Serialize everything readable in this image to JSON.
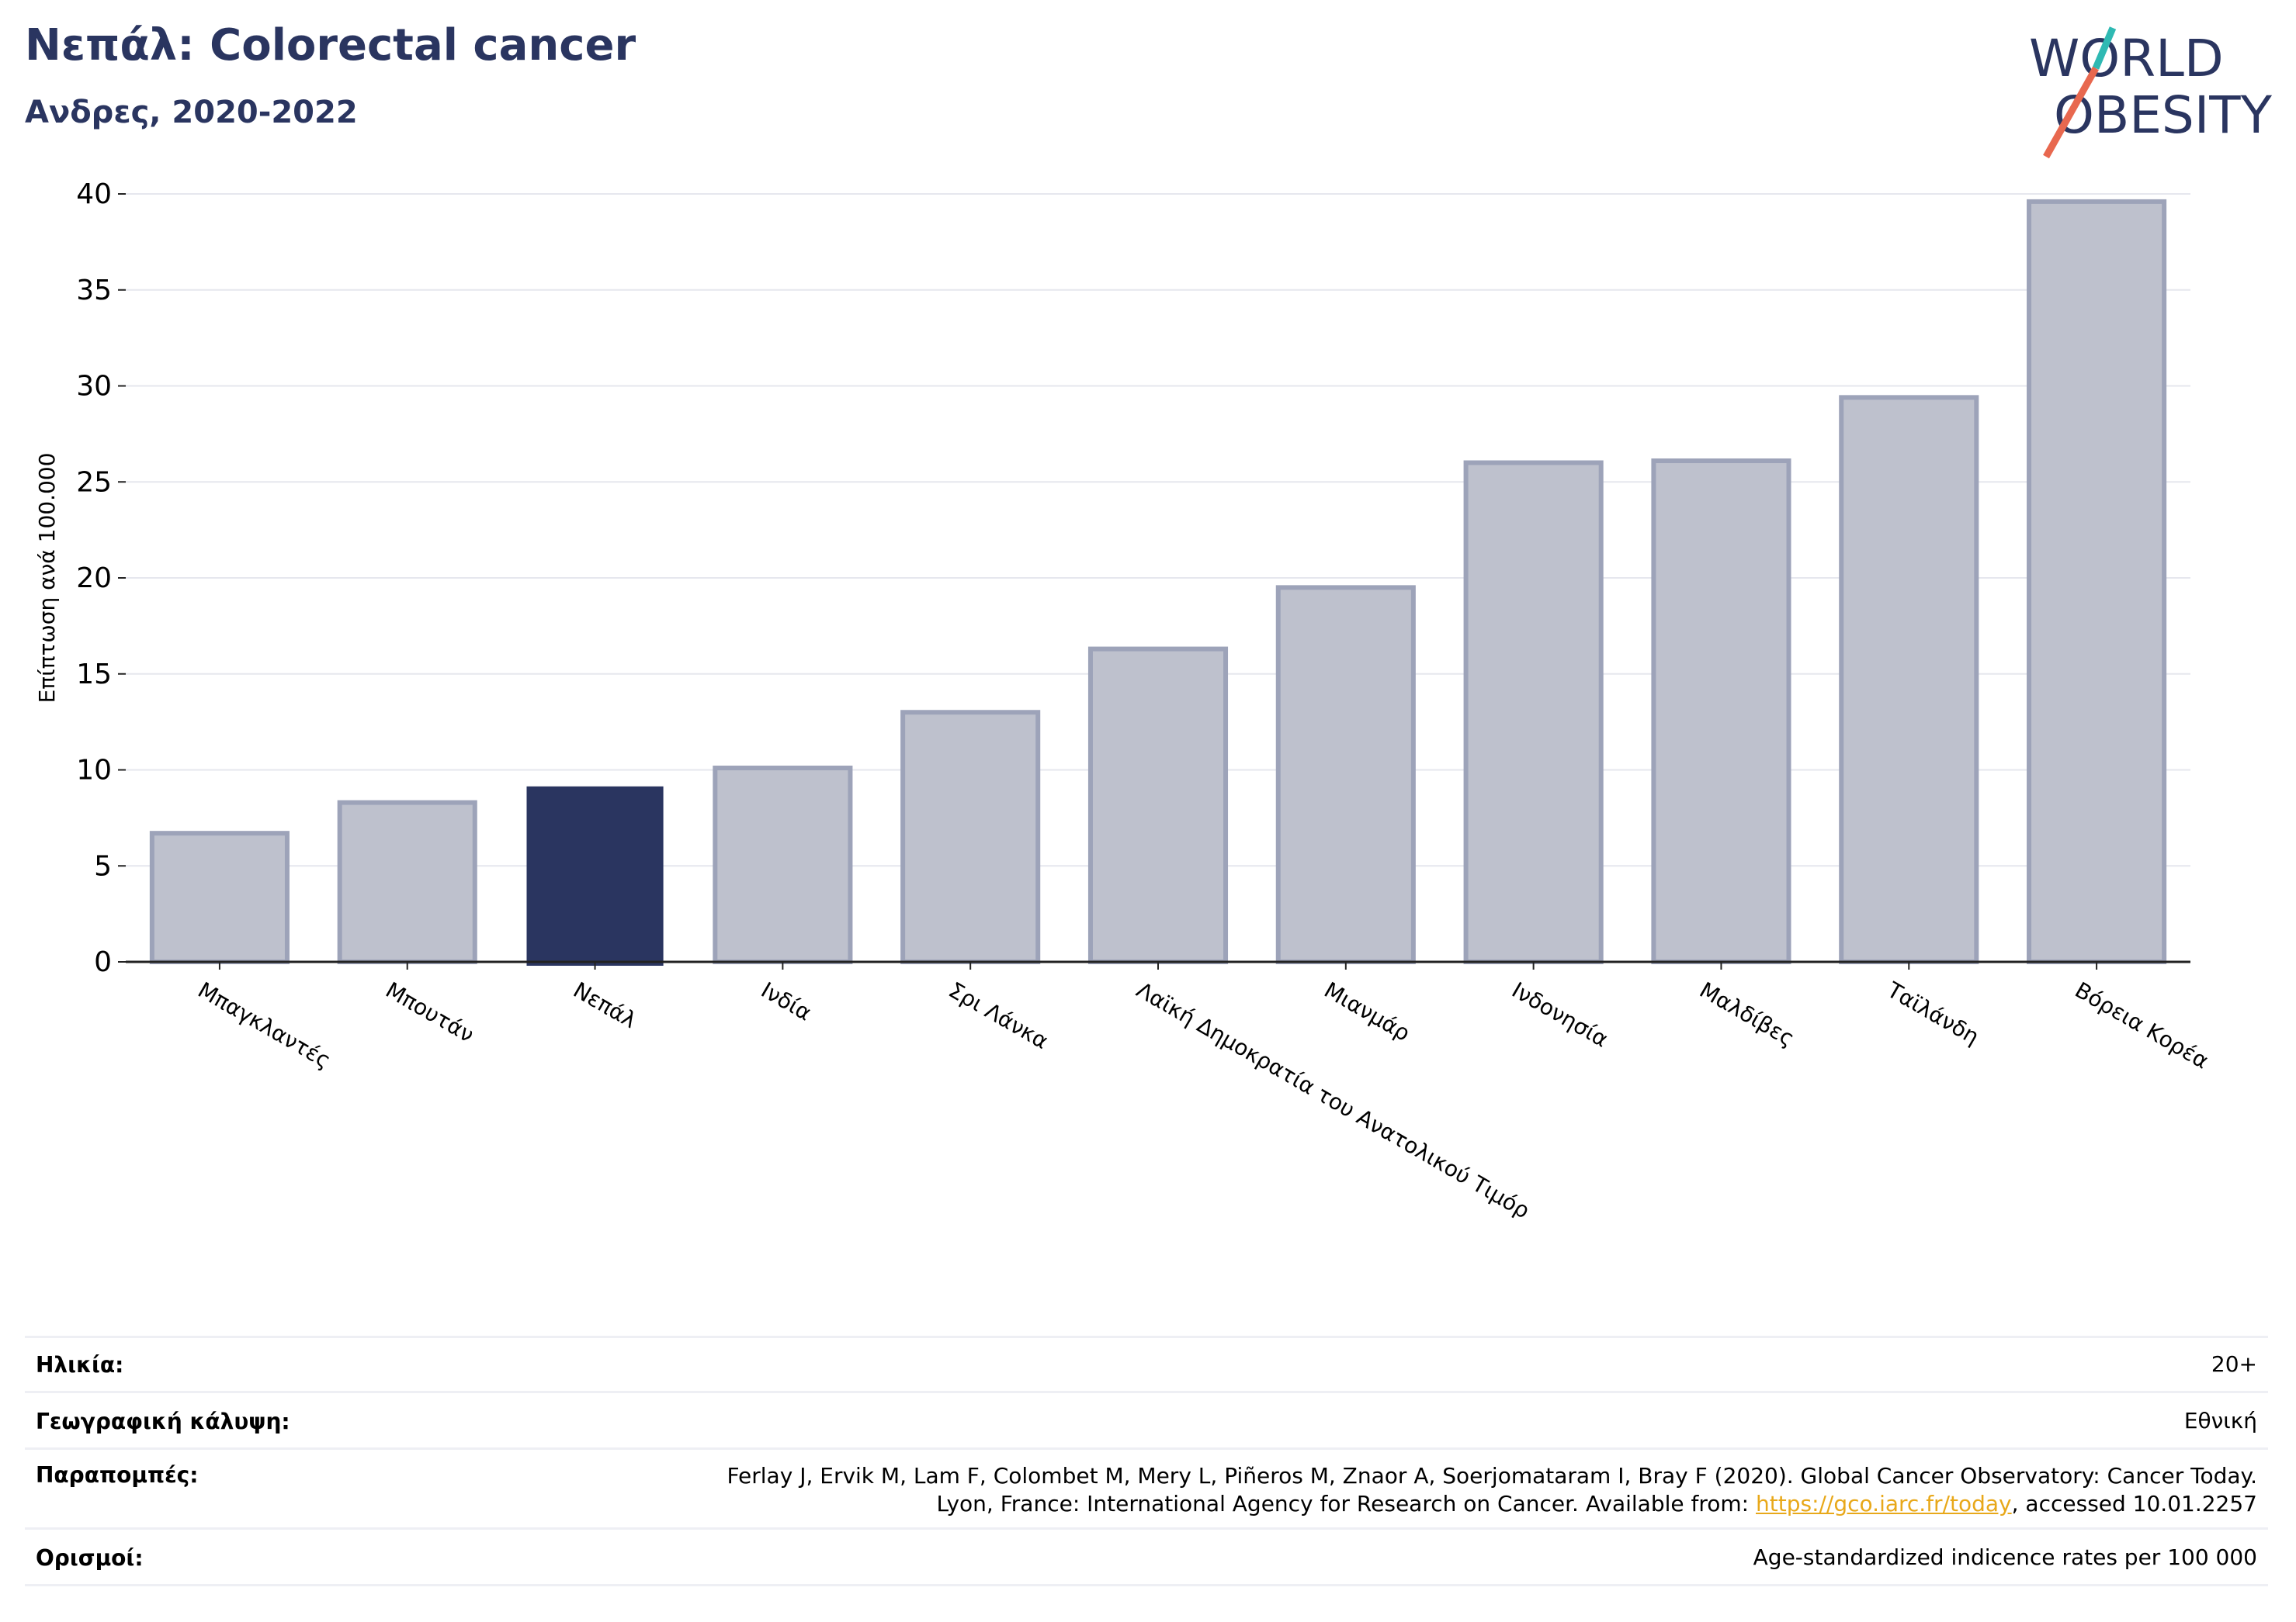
{
  "header": {
    "title": "Νεπάλ: Colorectal cancer",
    "subtitle": "Ανδρες, 2020-2022"
  },
  "logo": {
    "line1": "WORLD",
    "line2": "OBESITY"
  },
  "chart_data": {
    "type": "bar",
    "title": "Νεπάλ: Colorectal cancer",
    "subtitle": "Ανδρες, 2020-2022",
    "ylabel": "Επίπτωση ανά 100.000",
    "xlabel": "",
    "ylim": [
      0,
      40
    ],
    "yticks": [
      0,
      5,
      10,
      15,
      20,
      25,
      30,
      35,
      40
    ],
    "grid": true,
    "categories": [
      "Μπαγκλαντές",
      "Μπουτάν",
      "Νεπάλ",
      "Ινδία",
      "Σρι Λάνκα",
      "Λαϊκή Δημοκρατία του Ανατολικού Τιμόρ",
      "Μιανμάρ",
      "Ινδονησία",
      "Μαλδίβες",
      "Ταϊλάνδη",
      "Βόρεια Κορέα"
    ],
    "values": [
      6.7,
      8.3,
      9.1,
      10.1,
      13.0,
      16.3,
      19.5,
      26.0,
      26.1,
      29.4,
      39.6
    ],
    "highlight": "Νεπάλ",
    "colors": {
      "bar": "#bec1cd",
      "bar_edge": "#9da3b9",
      "highlight": "#2a3560",
      "grid": "#e6e7ee",
      "axis": "#222222"
    }
  },
  "info": {
    "age_label": "Ηλικία:",
    "age_value": "20+",
    "coverage_label": "Γεωγραφική κάλυψη:",
    "coverage_value": "Εθνική",
    "refs_label": "Παραπομπές:",
    "refs_line1": "Ferlay J, Ervik M, Lam F, Colombet M, Mery L, Piñeros M, Znaor A, Soerjomataram I, Bray F (2020). Global Cancer Observatory: Cancer Today.",
    "refs_line2_pre": "Lyon, France: International Agency for Research on Cancer. Available from: ",
    "refs_link": "https://gco.iarc.fr/today",
    "refs_line2_post": ", accessed 10.01.2257",
    "defs_label": "Ορισμοί:",
    "defs_value": "Age-standardized indicence rates per 100 000"
  }
}
